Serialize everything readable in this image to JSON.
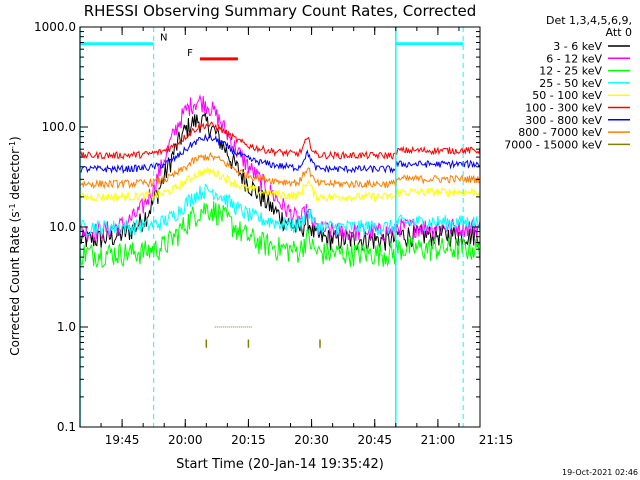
{
  "chart_data": {
    "type": "line",
    "title": "RHESSI Observing Summary Count Rates, Corrected",
    "xlabel": "Start Time (20-Jan-14 19:35:42)",
    "ylabel_main": "Corrected Count Rate (s",
    "ylabel_sup1": "-1",
    "ylabel_mid": " detector",
    "ylabel_sup2": "-1",
    "ylabel_end": ")",
    "y_scale": "log",
    "ylim": [
      0.1,
      1000.0
    ],
    "xlim_minutes": [
      0,
      95
    ],
    "x_ticks": [
      {
        "t": 10,
        "label": "19:45"
      },
      {
        "t": 25,
        "label": "20:00"
      },
      {
        "t": 40,
        "label": "20:15"
      },
      {
        "t": 55,
        "label": "20:30"
      },
      {
        "t": 70,
        "label": "20:45"
      },
      {
        "t": 85,
        "label": "21:00"
      },
      {
        "t": 100,
        "label": "21:15"
      }
    ],
    "y_ticks": [
      {
        "v": 0.1,
        "label": "0.1"
      },
      {
        "v": 1.0,
        "label": "1.0"
      },
      {
        "v": 10.0,
        "label": "10.0"
      },
      {
        "v": 100.0,
        "label": "100.0"
      },
      {
        "v": 1000.0,
        "label": "1000.0"
      }
    ],
    "legend_header": [
      "Det 1,3,4,5,6,9,",
      "Att 0"
    ],
    "legend_placement": "right",
    "series": [
      {
        "name": "3 - 6 keV",
        "color": "#000000",
        "base": 7.5,
        "peak_t": 28,
        "peak_v": 90,
        "noise": 0.25
      },
      {
        "name": "6 - 12 keV",
        "color": "#ff00ff",
        "base": 9.0,
        "peak_t": 28,
        "peak_v": 140,
        "noise": 0.22
      },
      {
        "name": "12 - 25 keV",
        "color": "#00ff00",
        "base": 5.5,
        "peak_t": 30,
        "peak_v": 13,
        "noise": 0.28
      },
      {
        "name": "25 - 50 keV",
        "color": "#00ffff",
        "base": 10.0,
        "peak_t": 30,
        "peak_v": 20,
        "noise": 0.18
      },
      {
        "name": "50 - 100 keV",
        "color": "#ffff00",
        "base": 20.0,
        "peak_t": 30,
        "peak_v": 32,
        "noise": 0.1
      },
      {
        "name": "100 - 300 keV",
        "color": "#ff0000",
        "base": 52.0,
        "peak_t": 30,
        "peak_v": 92,
        "noise": 0.08
      },
      {
        "name": "300 - 800 keV",
        "color": "#0000ff",
        "base": 38.0,
        "peak_t": 30,
        "peak_v": 68,
        "noise": 0.08
      },
      {
        "name": "800 - 7000 keV",
        "color": "#ff7f00",
        "base": 27.0,
        "peak_t": 30,
        "peak_v": 45,
        "noise": 0.09
      },
      {
        "name": "7000 - 15000 keV",
        "color": "#7f7f00",
        "base": 1.0,
        "peak_t": 30,
        "peak_v": 1.0,
        "noise": 0.0
      }
    ],
    "flags": [
      {
        "label": "N",
        "color": "#00ffff",
        "segments": [
          [
            0,
            17.5
          ],
          [
            75,
            91
          ]
        ],
        "level": 680
      },
      {
        "label": "F",
        "color": "#ff0000",
        "segments": [
          [
            28.5,
            37.5
          ]
        ],
        "level": 480
      }
    ],
    "saa_lines_minutes": [
      17.5,
      91
    ],
    "night_bounds_minutes": [
      0,
      75
    ],
    "footer_date": "19-Oct-2021 02:46"
  }
}
